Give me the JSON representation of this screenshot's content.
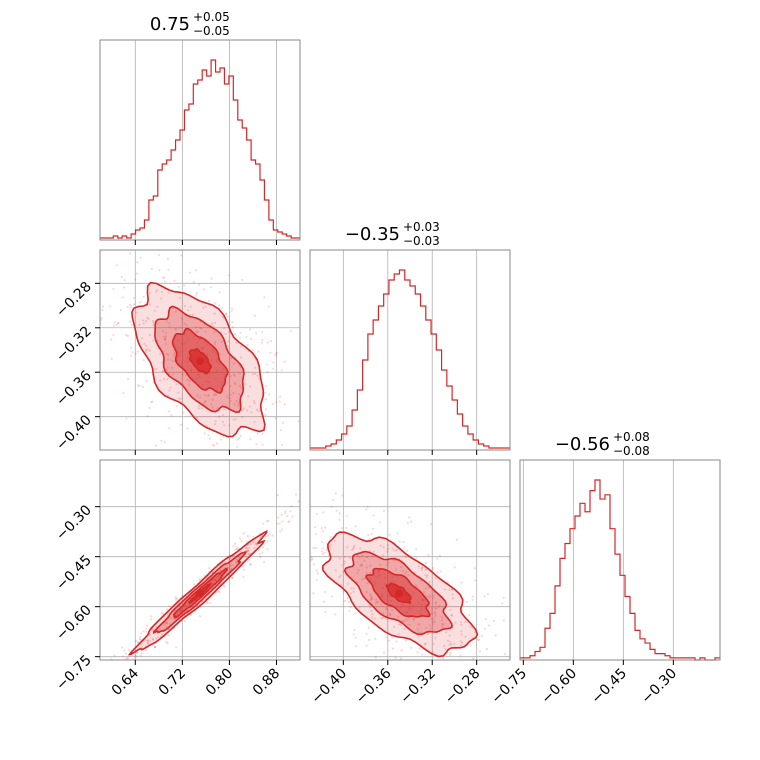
{
  "chart_data": {
    "type": "corner",
    "color": "#d62728",
    "grid": true,
    "parameters": [
      {
        "median": 0.75,
        "plus": "+0.05",
        "minus": "−0.05",
        "title_value": "0.75",
        "ticks": [
          0.64,
          0.72,
          0.8,
          0.88
        ],
        "tick_labels": [
          "0.64",
          "0.72",
          "0.80",
          "0.88"
        ],
        "range": [
          0.58,
          0.92
        ]
      },
      {
        "median": -0.35,
        "plus": "+0.03",
        "minus": "−0.03",
        "title_value": "−0.35",
        "ticks": [
          -0.4,
          -0.36,
          -0.32,
          -0.28
        ],
        "tick_labels": [
          "−0.40",
          "−0.36",
          "−0.32",
          "−0.28"
        ],
        "range": [
          -0.43,
          -0.25
        ]
      },
      {
        "median": -0.56,
        "plus": "+0.08",
        "minus": "−0.08",
        "title_value": "−0.56",
        "ticks": [
          -0.75,
          -0.6,
          -0.45,
          -0.3
        ],
        "tick_labels": [
          "−0.75",
          "−0.60",
          "−0.45",
          "−0.30"
        ],
        "range": [
          -0.76,
          -0.16
        ]
      }
    ],
    "marginals": [
      {
        "param": 0,
        "bins_start": 0.58,
        "bins_end": 0.92,
        "counts": [
          1,
          1,
          1,
          2,
          1,
          2,
          1,
          3,
          5,
          6,
          10,
          20,
          22,
          35,
          38,
          40,
          45,
          50,
          55,
          65,
          68,
          78,
          80,
          85,
          82,
          90,
          84,
          86,
          78,
          82,
          70,
          60,
          56,
          50,
          40,
          38,
          30,
          20,
          10,
          5,
          4,
          3,
          2,
          1,
          1
        ]
      },
      {
        "param": 1,
        "bins_start": -0.43,
        "bins_end": -0.25,
        "counts": [
          1,
          1,
          1,
          2,
          3,
          5,
          8,
          12,
          20,
          30,
          45,
          58,
          65,
          72,
          78,
          85,
          88,
          90,
          85,
          82,
          78,
          72,
          65,
          58,
          50,
          40,
          32,
          25,
          18,
          12,
          8,
          5,
          3,
          2,
          1,
          1,
          1,
          1
        ]
      },
      {
        "param": 2,
        "bins_start": -0.76,
        "bins_end": -0.16,
        "counts": [
          1,
          1,
          2,
          4,
          6,
          15,
          22,
          35,
          48,
          55,
          62,
          68,
          74,
          70,
          80,
          85,
          76,
          78,
          62,
          50,
          40,
          30,
          22,
          14,
          10,
          8,
          5,
          3,
          3,
          2,
          1,
          1,
          1,
          1,
          1,
          0,
          1,
          0,
          0,
          1
        ]
      }
    ],
    "correlation": [
      {
        "x": 0,
        "y": 1,
        "rho": -0.55
      },
      {
        "x": 0,
        "y": 2,
        "rho": 0.98
      },
      {
        "x": 1,
        "y": 2,
        "rho": -0.65
      }
    ]
  }
}
